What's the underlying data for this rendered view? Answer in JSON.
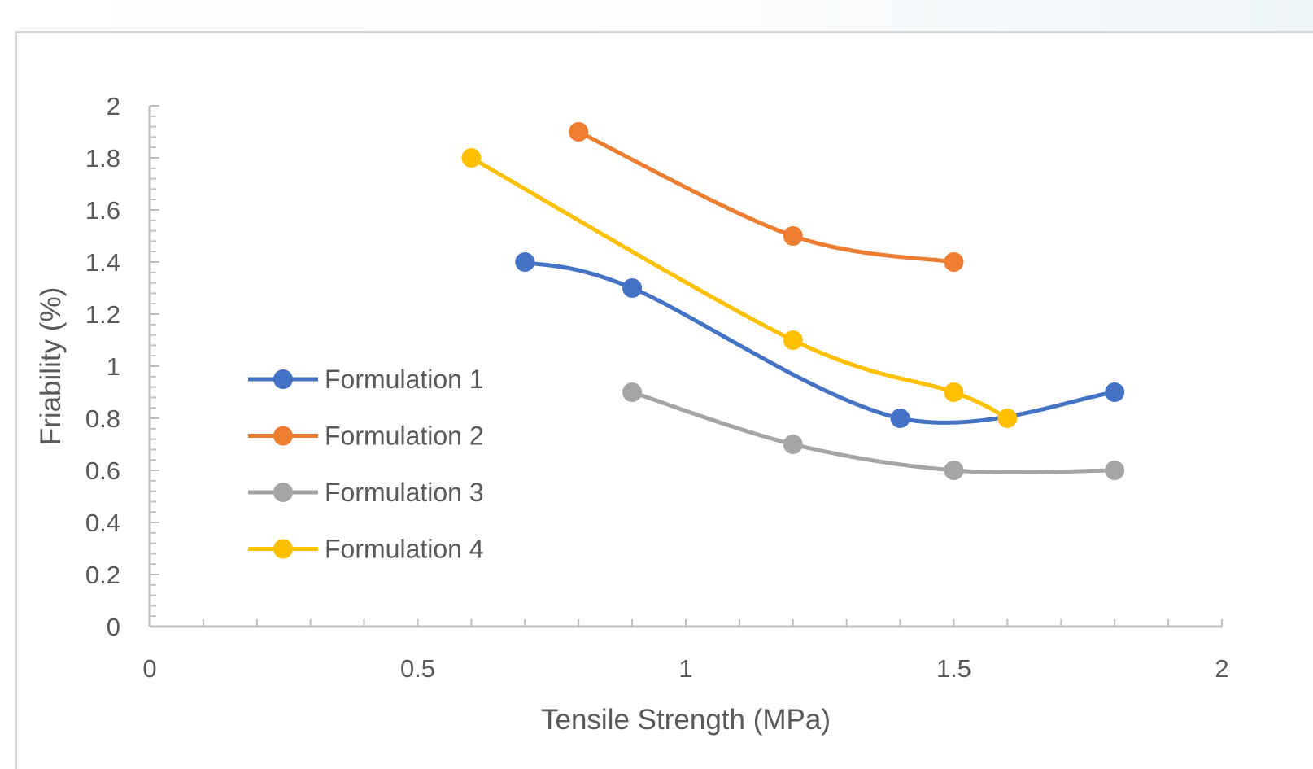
{
  "chart_data": {
    "type": "scatter",
    "title": "",
    "xlabel": "Tensile Strength (MPa)",
    "ylabel": "Friability (%)",
    "xlim": [
      0,
      2
    ],
    "ylim": [
      0,
      2
    ],
    "x_ticks": [
      "0",
      "0.5",
      "1",
      "1.5",
      "2"
    ],
    "y_ticks": [
      "0",
      "0.2",
      "0.4",
      "0.6",
      "0.8",
      "1",
      "1.2",
      "1.4",
      "1.6",
      "1.8",
      "2"
    ],
    "smoothed_lines": true,
    "markers": true,
    "grid": false,
    "legend_position": "left, inside plot",
    "series": [
      {
        "name": "Formulation 1",
        "color": "#4472C4",
        "x": [
          0.7,
          0.9,
          1.4,
          1.8
        ],
        "y": [
          1.4,
          1.3,
          0.8,
          0.9
        ]
      },
      {
        "name": "Formulation 2",
        "color": "#ED7D31",
        "x": [
          0.8,
          1.2,
          1.5
        ],
        "y": [
          1.9,
          1.5,
          1.4
        ]
      },
      {
        "name": "Formulation 3",
        "color": "#A5A5A5",
        "x": [
          0.9,
          1.2,
          1.5,
          1.8
        ],
        "y": [
          0.9,
          0.7,
          0.6,
          0.6
        ]
      },
      {
        "name": "Formulation 4",
        "color": "#FFC000",
        "x": [
          0.6,
          1.2,
          1.5,
          1.6
        ],
        "y": [
          1.8,
          1.1,
          0.9,
          0.8
        ]
      }
    ]
  }
}
